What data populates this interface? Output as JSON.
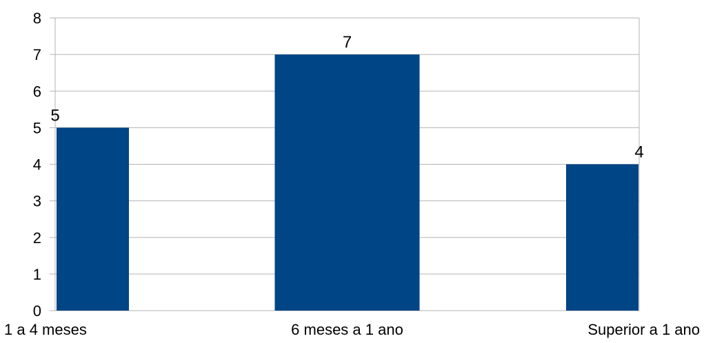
{
  "chart_data": {
    "type": "bar",
    "title": "",
    "xlabel": "",
    "ylabel": "",
    "categories": [
      "1 a 4 meses",
      "6 meses a 1 ano",
      "Superior a 1 ano"
    ],
    "values": [
      5,
      7,
      4
    ],
    "data_labels": [
      "5",
      "7",
      "4"
    ],
    "ylim": [
      0,
      8
    ],
    "yticks": [
      "0",
      "1",
      "2",
      "3",
      "4",
      "5",
      "6",
      "7",
      "8"
    ],
    "grid": true,
    "legend": "none",
    "colors": {
      "bar": "#004586",
      "grid": "#b3b3b3",
      "axis": "#b3b3b3"
    }
  }
}
